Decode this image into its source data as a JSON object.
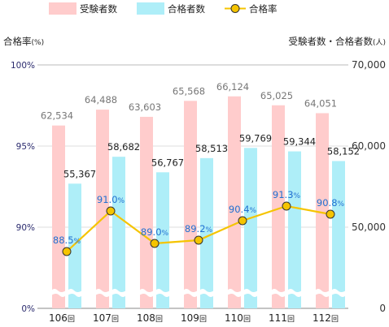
{
  "legend": {
    "applicants": "受験者数",
    "passers": "合格者数",
    "rate": "合格率"
  },
  "axes": {
    "left_title": "合格率",
    "left_unit": "(%)",
    "right_title": "受験者数・合格者数",
    "right_unit": "(人)",
    "left_ticks": [
      "100%",
      "95%",
      "90%",
      "0%"
    ],
    "right_ticks": [
      "70,000",
      "60,000",
      "50,000",
      "0"
    ]
  },
  "chart_data": {
    "type": "bar",
    "categories": [
      "106回",
      "107回",
      "108回",
      "109回",
      "110回",
      "111回",
      "112回"
    ],
    "category_numbers": [
      "106",
      "107",
      "108",
      "109",
      "110",
      "111",
      "112"
    ],
    "category_suffix": "回",
    "series": [
      {
        "name": "受験者数",
        "axis": "right",
        "values": [
          62534,
          64488,
          63603,
          65568,
          66124,
          65025,
          64051
        ],
        "labels": [
          "62,534",
          "64,488",
          "63,603",
          "65,568",
          "66,124",
          "65,025",
          "64,051"
        ],
        "color": "#ffcccc"
      },
      {
        "name": "合格者数",
        "axis": "right",
        "values": [
          55367,
          58682,
          56767,
          58513,
          59769,
          59344,
          58152
        ],
        "labels": [
          "55,367",
          "58,682",
          "56,767",
          "58,513",
          "59,769",
          "59,344",
          "58,152"
        ],
        "color": "#aeeef8"
      },
      {
        "name": "合格率",
        "type": "line",
        "axis": "left",
        "values": [
          88.5,
          91.0,
          89.0,
          89.2,
          90.4,
          91.3,
          90.8
        ],
        "labels": [
          "88.5%",
          "91.0%",
          "89.0%",
          "89.2%",
          "90.4%",
          "91.3%",
          "90.8%"
        ],
        "color": "#f5c400"
      }
    ],
    "ylim_left": [
      0,
      100
    ],
    "ylim_right": [
      0,
      70000
    ],
    "axis_break": true,
    "legend_position": "top"
  }
}
